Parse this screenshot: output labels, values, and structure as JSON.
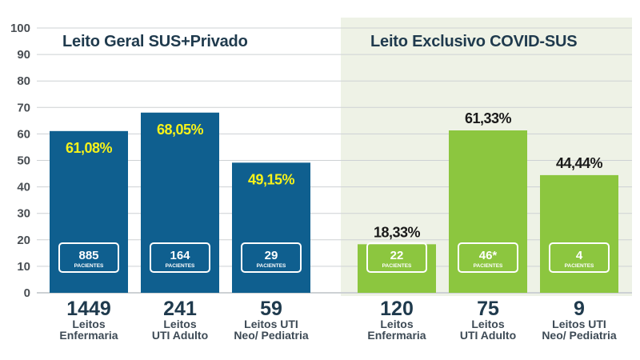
{
  "header": {
    "title": ""
  },
  "chart_data": [
    {
      "type": "bar",
      "title": "Leito Geral SUS+Privado",
      "ylim": [
        0,
        100
      ],
      "yticks": [
        0,
        10,
        20,
        30,
        40,
        50,
        60,
        70,
        80,
        90,
        100
      ],
      "grid": true,
      "bar_color": "#0f5f8f",
      "value_label_color": "#f6f21a",
      "categories": [
        {
          "beds": "1449",
          "label_line1": "Leitos",
          "label_line2": "Enfermaria",
          "value": 61.08,
          "value_label": "61,08%",
          "patients": "885",
          "patients_label": "PACIENTES"
        },
        {
          "beds": "241",
          "label_line1": "Leitos",
          "label_line2": "UTI Adulto",
          "value": 68.05,
          "value_label": "68,05%",
          "patients": "164",
          "patients_label": "PACIENTES"
        },
        {
          "beds": "59",
          "label_line1": "Leitos UTI",
          "label_line2": "Neo/ Pediatria",
          "value": 49.15,
          "value_label": "49,15%",
          "patients": "29",
          "patients_label": "PACIENTES"
        }
      ]
    },
    {
      "type": "bar",
      "title": "Leito Exclusivo COVID-SUS",
      "ylim": [
        0,
        100
      ],
      "grid": true,
      "bar_color": "#8cc63f",
      "panel_color": "#eef2e6",
      "value_label_color": "#1a1a1a",
      "categories": [
        {
          "beds": "120",
          "label_line1": "Leitos",
          "label_line2": "Enfermaria",
          "value": 18.33,
          "value_label": "18,33%",
          "patients": "22",
          "patients_label": "PACIENTES"
        },
        {
          "beds": "75",
          "label_line1": "Leitos",
          "label_line2": "UTI Adulto",
          "value": 61.33,
          "value_label": "61,33%",
          "patients": "46*",
          "patients_label": "PACIENTES"
        },
        {
          "beds": "9",
          "label_line1": "Leitos UTI",
          "label_line2": "Neo/ Pediatria",
          "value": 44.44,
          "value_label": "44,44%",
          "patients": "4",
          "patients_label": "PACIENTES"
        }
      ]
    }
  ]
}
